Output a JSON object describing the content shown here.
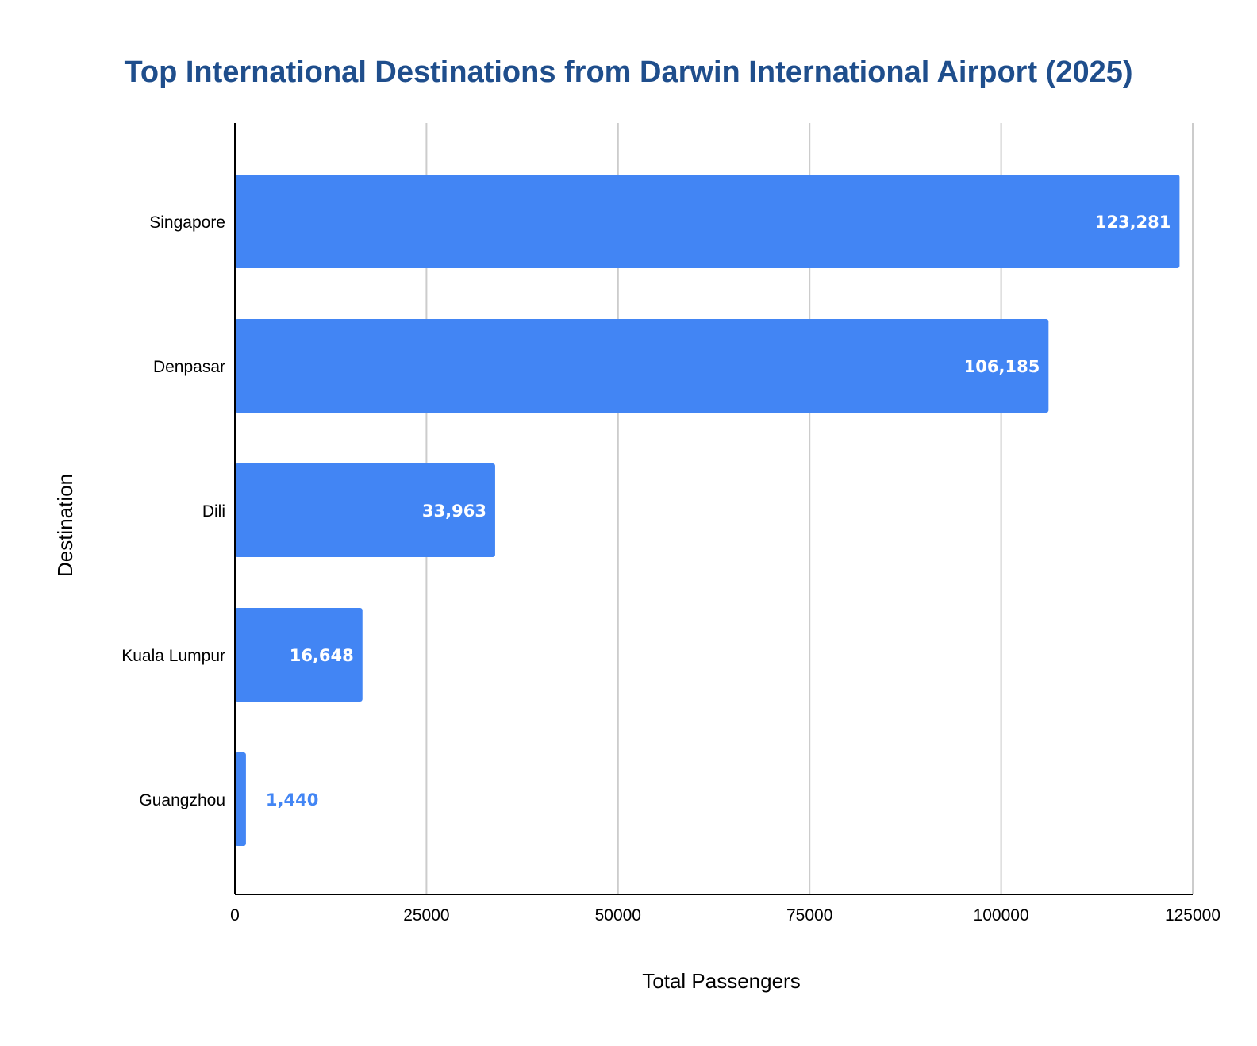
{
  "chart_data": {
    "type": "bar",
    "orientation": "horizontal",
    "title": "Top International Destinations from Darwin International Airport (2025)",
    "xlabel": "Total Passengers",
    "ylabel": "Destination",
    "categories": [
      "Singapore",
      "Denpasar",
      "Dili",
      "Kuala Lumpur",
      "Guangzhou"
    ],
    "values": [
      123281,
      106185,
      33963,
      16648,
      1440
    ],
    "data_labels": [
      "123,281",
      "106,185",
      "33,963",
      "16,648",
      "1,440"
    ],
    "xlim": [
      0,
      125000
    ],
    "x_ticks": [
      "0",
      "25000",
      "50000",
      "75000",
      "100000",
      "125000"
    ],
    "grid": "vertical",
    "legend": "none",
    "colors": {
      "bar": "#4285f4",
      "title": "#1f4e8c",
      "grid": "#cccccc",
      "axis": "#000000",
      "label_inside": "#ffffff",
      "label_outside": "#4285f4"
    }
  }
}
